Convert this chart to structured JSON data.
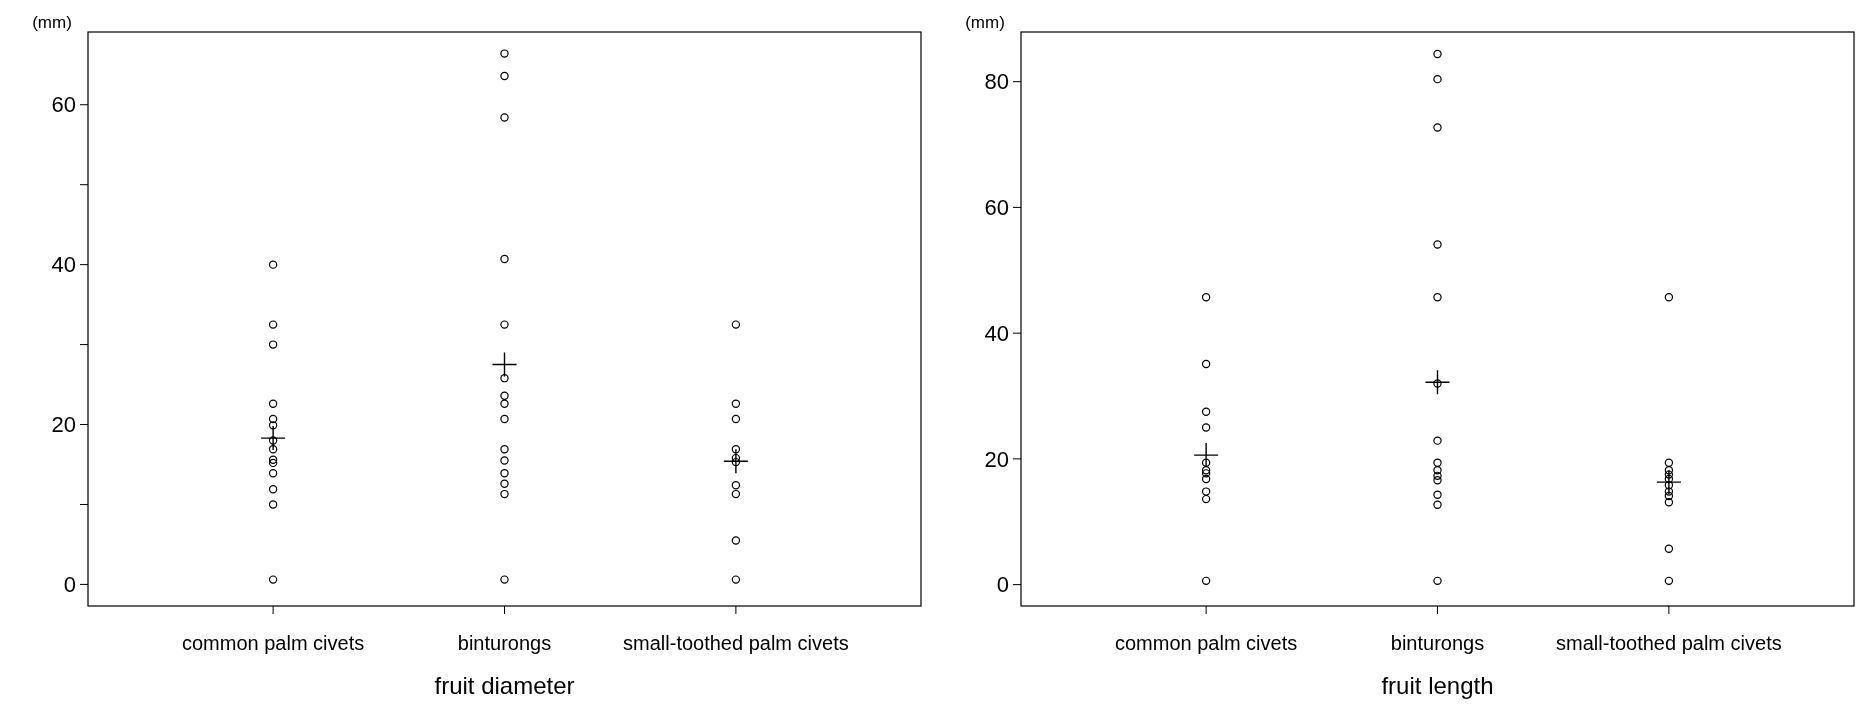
{
  "chart_data": [
    {
      "type": "scatter",
      "xlabel": "fruit diameter",
      "ylabel": "(mm)",
      "categories": [
        "common palm civets",
        "binturongs",
        "small-toothed palm civets"
      ],
      "ylim": [
        -2.7,
        69.1
      ],
      "yticks": [
        0,
        {
          "value": 10,
          "label": null
        },
        20,
        {
          "value": 30,
          "label": null
        },
        40,
        {
          "value": 50,
          "label": null
        },
        60
      ],
      "grid": false,
      "series": [
        {
          "color": "#000000",
          "marker": "circle",
          "x": [
            "common palm civets",
            "common palm civets",
            "common palm civets",
            "common palm civets",
            "common palm civets",
            "common palm civets",
            "common palm civets",
            "common palm civets",
            "common palm civets",
            "common palm civets",
            "common palm civets",
            "common palm civets",
            "common palm civets",
            "common palm civets",
            "binturongs",
            "binturongs",
            "binturongs",
            "binturongs",
            "binturongs",
            "binturongs",
            "binturongs",
            "binturongs",
            "binturongs",
            "binturongs",
            "binturongs",
            "binturongs",
            "binturongs",
            "binturongs",
            "binturongs",
            "small-toothed palm civets",
            "small-toothed palm civets",
            "small-toothed palm civets",
            "small-toothed palm civets",
            "small-toothed palm civets",
            "small-toothed palm civets",
            "small-toothed palm civets",
            "small-toothed palm civets",
            "small-toothed palm civets",
            "small-toothed palm civets"
          ],
          "values": [
            40.0,
            32.5,
            30.0,
            22.6,
            20.7,
            19.9,
            18.0,
            16.9,
            15.6,
            15.2,
            13.9,
            11.9,
            10.0,
            0.6,
            66.4,
            63.6,
            58.4,
            40.7,
            32.5,
            25.8,
            23.6,
            22.6,
            20.7,
            16.9,
            15.5,
            13.9,
            12.6,
            11.3,
            0.6,
            32.5,
            22.6,
            20.7,
            16.9,
            15.8,
            15.3,
            12.4,
            11.3,
            5.5,
            0.6
          ]
        },
        {
          "color": "#000000",
          "marker": "cross",
          "x": [
            "common palm civets",
            "binturongs",
            "small-toothed palm civets"
          ],
          "values": [
            18.3,
            27.5,
            15.4
          ]
        }
      ]
    },
    {
      "type": "scatter",
      "xlabel": "fruit length",
      "ylabel": "(mm)",
      "categories": [
        "common palm civets",
        "binturongs",
        "small-toothed palm civets"
      ],
      "ylim": [
        -3.4,
        87.9
      ],
      "yticks": [
        0,
        20,
        40,
        60,
        80
      ],
      "grid": false,
      "series": [
        {
          "color": "#000000",
          "marker": "circle",
          "x": [
            "common palm civets",
            "common palm civets",
            "common palm civets",
            "common palm civets",
            "common palm civets",
            "common palm civets",
            "common palm civets",
            "common palm civets",
            "common palm civets",
            "common palm civets",
            "common palm civets",
            "binturongs",
            "binturongs",
            "binturongs",
            "binturongs",
            "binturongs",
            "binturongs",
            "binturongs",
            "binturongs",
            "binturongs",
            "binturongs",
            "binturongs",
            "binturongs",
            "binturongs",
            "binturongs",
            "small-toothed palm civets",
            "small-toothed palm civets",
            "small-toothed palm civets",
            "small-toothed palm civets",
            "small-toothed palm civets",
            "small-toothed palm civets",
            "small-toothed palm civets",
            "small-toothed palm civets",
            "small-toothed palm civets",
            "small-toothed palm civets",
            "small-toothed palm civets"
          ],
          "values": [
            45.7,
            35.1,
            27.5,
            25.0,
            19.4,
            18.2,
            17.7,
            16.8,
            14.8,
            13.6,
            0.6,
            84.4,
            80.4,
            72.7,
            54.1,
            45.7,
            32.0,
            22.9,
            19.4,
            18.2,
            17.3,
            16.6,
            14.3,
            12.7,
            0.6,
            45.7,
            19.4,
            18.2,
            17.5,
            16.8,
            15.8,
            14.8,
            14.1,
            13.1,
            5.7,
            0.6
          ]
        },
        {
          "color": "#000000",
          "marker": "cross",
          "x": [
            "common palm civets",
            "binturongs",
            "small-toothed palm civets"
          ],
          "values": [
            20.6,
            32.2,
            16.3
          ]
        }
      ]
    }
  ]
}
